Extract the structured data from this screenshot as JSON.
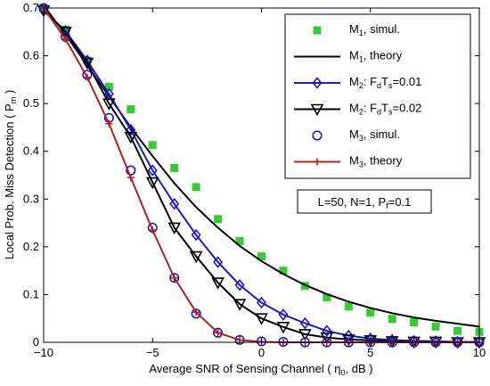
{
  "chart_data": {
    "type": "line",
    "xlabel": "Average SNR of Sensing Channel ( η0, dB )",
    "xlabel_parts": {
      "text": "Average SNR of Sensing Channel ( η",
      "sub": "0",
      "tail": ", dB )"
    },
    "ylabel": "Local Prob. Miss Detection ( Pm )",
    "ylabel_parts": {
      "text": "Local Prob. Miss Detection ( P",
      "sub": "m",
      "tail": " )"
    },
    "xlim": [
      -10,
      10
    ],
    "ylim": [
      0,
      0.7
    ],
    "xticks": [
      -10,
      -5,
      0,
      5,
      10
    ],
    "xtick_labels": [
      "−10",
      "−5",
      "0",
      "5",
      "10"
    ],
    "yticks": [
      0,
      0.1,
      0.2,
      0.3,
      0.4,
      0.5,
      0.6,
      0.7
    ],
    "ytick_labels": [
      "0",
      "0.1",
      "0.2",
      "0.3",
      "0.4",
      "0.5",
      "0.6",
      "0.7"
    ],
    "grid": false,
    "legend_position": "top-right",
    "annotation": {
      "text": "L=50, N=1, P",
      "sub": "f",
      "tail": "=0.1"
    },
    "series": [
      {
        "name": "M1, simul.",
        "label_parts": {
          "a": "M",
          "sub": "1",
          "b": ", simul."
        },
        "style": "markers",
        "marker": "square",
        "color": "#33cc33",
        "x": [
          -10,
          -9,
          -8,
          -7,
          -6,
          -5,
          -4,
          -3,
          -2,
          -1,
          0,
          1,
          2,
          3,
          4,
          5,
          6,
          7,
          8,
          9,
          10
        ],
        "y": [
          0.7,
          0.655,
          0.59,
          0.535,
          0.488,
          0.413,
          0.365,
          0.325,
          0.258,
          0.212,
          0.18,
          0.15,
          0.118,
          0.094,
          0.075,
          0.062,
          0.049,
          0.042,
          0.033,
          0.024,
          0.022
        ]
      },
      {
        "name": "M1, theory",
        "label_parts": {
          "a": "M",
          "sub": "1",
          "b": ", theory"
        },
        "style": "line",
        "color": "#000000",
        "x": [
          -10,
          -9,
          -8,
          -7,
          -6,
          -5,
          -4,
          -3,
          -2,
          -1,
          0,
          1,
          2,
          3,
          4,
          5,
          6,
          7,
          8,
          9,
          10
        ],
        "y": [
          0.705,
          0.645,
          0.58,
          0.515,
          0.45,
          0.39,
          0.333,
          0.283,
          0.24,
          0.202,
          0.17,
          0.143,
          0.12,
          0.101,
          0.085,
          0.072,
          0.061,
          0.052,
          0.045,
          0.039,
          0.033
        ]
      },
      {
        "name": "M2: FdTs=0.01",
        "label_parts": {
          "a": "M",
          "sub": "2",
          "b": ": F",
          "sub2": "d",
          "c": "T",
          "sub3": "s",
          "d": "=0.01"
        },
        "style": "line+markers",
        "marker": "diamond",
        "color": "#1a1acc",
        "x": [
          -10,
          -9,
          -8,
          -7,
          -6,
          -5,
          -4,
          -3,
          -2,
          -1,
          0,
          1,
          2,
          3,
          4,
          5,
          6,
          7,
          8,
          9,
          10
        ],
        "y": [
          0.695,
          0.652,
          0.59,
          0.52,
          0.445,
          0.36,
          0.29,
          0.225,
          0.168,
          0.12,
          0.083,
          0.058,
          0.04,
          0.024,
          0.014,
          0.008,
          0.005,
          0.003,
          0.002,
          0.001,
          0.001
        ]
      },
      {
        "name": "M2: FdTs=0.02",
        "label_parts": {
          "a": "M",
          "sub": "2",
          "b": ": F",
          "sub2": "d",
          "c": "T",
          "sub3": "s",
          "d": "=0.02"
        },
        "style": "line+markers",
        "marker": "triangle-down",
        "color": "#000000",
        "x": [
          -10,
          -9,
          -8,
          -7,
          -6,
          -5,
          -4,
          -3,
          -2,
          -1,
          0,
          1,
          2,
          3,
          4,
          5,
          6,
          7,
          8,
          9,
          10
        ],
        "y": [
          0.695,
          0.65,
          0.585,
          0.5,
          0.43,
          0.335,
          0.24,
          0.18,
          0.125,
          0.08,
          0.05,
          0.032,
          0.017,
          0.01,
          0.006,
          0.004,
          0.002,
          0.001,
          0.001,
          0.0,
          0.0
        ]
      },
      {
        "name": "M3, simul.",
        "label_parts": {
          "a": "M",
          "sub": "3",
          "b": ", simul."
        },
        "style": "markers",
        "marker": "circle",
        "color": "#1a1acc",
        "x": [
          -10,
          -9,
          -8,
          -7,
          -6,
          -5,
          -4,
          -3,
          -2,
          -1,
          0,
          1,
          2,
          3,
          4,
          5,
          6,
          7,
          8,
          9,
          10
        ],
        "y": [
          0.7,
          0.64,
          0.56,
          0.47,
          0.36,
          0.24,
          0.135,
          0.06,
          0.02,
          0.005,
          0.002,
          0.001,
          0.0,
          0.0,
          0.0,
          0.0,
          0.0,
          0.0,
          0.0,
          0.0,
          0.0
        ]
      },
      {
        "name": "M3, theory",
        "label_parts": {
          "a": "M",
          "sub": "3",
          "b": ", theory"
        },
        "style": "line+markers",
        "marker": "plus",
        "color": "#b02020",
        "x": [
          -10,
          -9,
          -8,
          -7,
          -6,
          -5,
          -4,
          -3,
          -2,
          -1,
          0,
          1,
          2,
          3,
          4,
          5,
          6,
          7,
          8,
          9,
          10
        ],
        "y": [
          0.7,
          0.635,
          0.555,
          0.458,
          0.345,
          0.235,
          0.135,
          0.063,
          0.02,
          0.005,
          0.001,
          0.0,
          0.0,
          0.0,
          0.0,
          0.0,
          0.0,
          0.0,
          0.0,
          0.0,
          0.0
        ]
      }
    ]
  }
}
